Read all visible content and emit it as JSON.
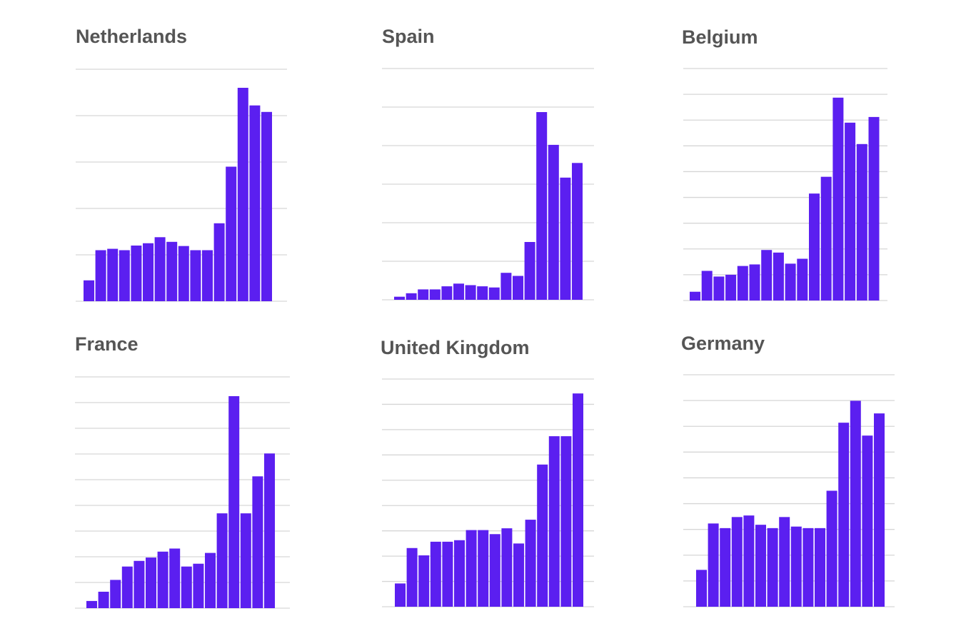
{
  "colors": {
    "bar": "#5b1ff0",
    "grid": "#d6d6d6",
    "title": "#555555",
    "background": "#ffffff"
  },
  "chart_data": [
    {
      "type": "bar",
      "title": "Netherlands",
      "grid": true,
      "ylim": [
        0,
        5
      ],
      "values": [
        0.45,
        1.1,
        1.13,
        1.1,
        1.2,
        1.25,
        1.38,
        1.28,
        1.19,
        1.1,
        1.1,
        1.68,
        2.9,
        4.6,
        4.22,
        4.08
      ]
    },
    {
      "type": "bar",
      "title": "Spain",
      "grid": true,
      "ylim": [
        0,
        6
      ],
      "values": [
        0.08,
        0.17,
        0.27,
        0.27,
        0.35,
        0.42,
        0.38,
        0.35,
        0.32,
        0.7,
        0.62,
        1.5,
        4.87,
        4.02,
        3.17,
        3.55
      ]
    },
    {
      "type": "bar",
      "title": "Belgium",
      "grid": true,
      "ylim": [
        0,
        9
      ],
      "values": [
        0.34,
        1.15,
        0.93,
        1.0,
        1.34,
        1.4,
        1.96,
        1.86,
        1.43,
        1.62,
        4.15,
        4.8,
        7.87,
        6.9,
        6.07,
        7.12
      ]
    },
    {
      "type": "bar",
      "title": "France",
      "grid": true,
      "ylim": [
        0,
        9
      ],
      "values": [
        0.28,
        0.64,
        1.1,
        1.62,
        1.84,
        1.97,
        2.2,
        2.32,
        1.62,
        1.73,
        2.15,
        3.69,
        8.25,
        3.69,
        5.13,
        6.02
      ]
    },
    {
      "type": "bar",
      "title": "United Kingdom",
      "grid": true,
      "ylim": [
        0,
        9
      ],
      "values": [
        0.92,
        2.32,
        2.03,
        2.57,
        2.57,
        2.63,
        3.03,
        3.03,
        2.87,
        3.1,
        2.5,
        3.44,
        5.62,
        6.74,
        6.74,
        8.43
      ]
    },
    {
      "type": "bar",
      "title": "Germany",
      "grid": true,
      "ylim": [
        0,
        9
      ],
      "values": [
        1.43,
        3.23,
        3.05,
        3.48,
        3.54,
        3.18,
        3.05,
        3.48,
        3.11,
        3.05,
        3.05,
        4.5,
        7.14,
        7.99,
        6.64,
        7.5
      ]
    }
  ]
}
